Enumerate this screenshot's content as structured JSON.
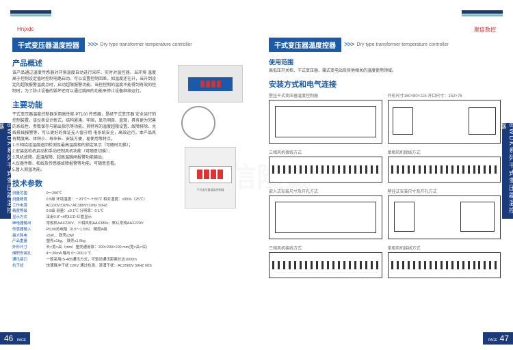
{
  "brand": {
    "logo_left": "Hnjxdc",
    "logo_right": "聚信数控",
    "tagline": "专业制造 品质保证"
  },
  "side_label": "BWDK系列干式变压器温控器",
  "title": {
    "main": "干式变压器温度控器",
    "arrows": ">>>",
    "sub": "Dry type transformer temperature controller"
  },
  "left": {
    "overview_h": "产品概述",
    "overview": "该产品通过温度传感器对环境温度自动进行采样、实时对温控器、当环境 温度高于控制设定值时控制电路启动，可以设置控制回差。如温度还在升，当升到设定的超限报警温度点时，启动超限报警功能。当控控制的温度不能得到有效的控制时，为了防止设备的毁坏还可以通过跳闸的功能来停止设备继续运行。",
    "func_h": "主要功能",
    "func": "干式变压器温度控制器采用高性能 PT100 传感器，是经干式变压器 安全运行的控制装置。该仪表设计新式，结构紧凑、牢固，显示明目、直观，具有更为完善的系统性、参数保存与输出指示等功能。其特有的温度超限设置、故障排除、兑线排线报警等，可以更好的保证无人值守用 电系统安全，高效运行。本产品具有精度高、体积小、寿命长、安装方便，易使用等特点。\n1.三相绕组温度巡回检测及最高温度相的锁定显示（可随时切换）；\n2.安装巡检机启动和手动控制风机功能（可随意切换）；\n3.风机故障、超温故障、超高温跳闸报警功能输出；\n4.仪器件断、和线及传感器故障报警等功能。可随意查看。\n5.暂入测温功能。",
    "params_h": "技术参数",
    "params": [
      {
        "k": "测量范围",
        "v": "0～200℃"
      },
      {
        "k": "测量精度",
        "v": "0.5级    环境温度：－20℃～＋55℃  相对湿度：≤95%（25℃）"
      },
      {
        "k": "工作电源",
        "v": "AC220V±10% / AC380V±10%/ 50HZ"
      },
      {
        "k": "精度等级",
        "v": "0.5级    测量：≤0.1℃    分辨率：0.1℃"
      },
      {
        "k": "显示方式",
        "v": "采用0.8\"×4的LED 红管显示"
      },
      {
        "k": "继电器输出",
        "v": "常规机AAX220V、三相风机AAX380v、默认常规AAX220V"
      },
      {
        "k": "传感器输入",
        "v": "Pt100热电阻（0.5～1.5%） 精度A级"
      },
      {
        "k": "最大耗电",
        "v": "≤5W、 铁壳≤3W"
      },
      {
        "k": "产品重量",
        "v": "塑壳≤1kg、 铁壳≤1.5kg"
      },
      {
        "k": "外形尺寸",
        "v": "长×宽×高（mm）塑壳通用款：200×200×100 mm(宽×高×深)"
      },
      {
        "k": "储职安装孔",
        "v": "4～20mA 输出 0～200.0 ℃"
      },
      {
        "k": "通讯接口",
        "v": "一般采用rS-485通讯方式，可驱动通讯距离长达1000m"
      },
      {
        "k": "抗干扰",
        "v": "快速脉冲干扰 ±2KV 通过检测、浪涌干扰：AC2500V 50HZ 60S"
      }
    ]
  },
  "right": {
    "scope_h": "使用范围",
    "scope": "高低压开关柜、干式变压器、箱式变电站及其他相关的温度使用领域。",
    "install_h": "安装方式和电气连接",
    "diagrams": {
      "d1": "壁挂干式变压器温度控制器",
      "d1_note": "尺寸长×宽×高（mm）",
      "d2": "外形尺寸160×80×115 开口尺寸：152×76",
      "d3": "L形安装开孔尺寸",
      "d4": "壁挂安装尺寸",
      "d5": "三相风机接线方式",
      "d6": "单相风机接线方式",
      "d7": "嵌入式安装尺寸及开孔方式",
      "d8": "壁挂式安装尺寸及开孔方式",
      "d9": "三相风机接线方式",
      "d10": "单相风机接线方式"
    }
  },
  "page_left": "46",
  "page_right": "47",
  "page_label": "PAGE",
  "watermark": "聚信隆诚"
}
